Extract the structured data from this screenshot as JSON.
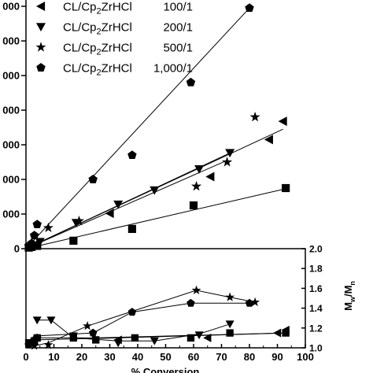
{
  "chart_data": [
    {
      "type": "scatter",
      "panel": "top",
      "xlabel": "% Conversion",
      "ylabel": "",
      "xlim": [
        0,
        100
      ],
      "ylim": [
        0,
        7500
      ],
      "y_tick_labels": [
        {
          "value": 0,
          "label": "0"
        },
        {
          "value": 1000,
          "label": "000"
        },
        {
          "value": 2000,
          "label": "000"
        },
        {
          "value": 3000,
          "label": "000"
        },
        {
          "value": 4000,
          "label": "000"
        },
        {
          "value": 5000,
          "label": "000"
        },
        {
          "value": 6000,
          "label": "000"
        },
        {
          "value": 7000,
          "label": "000"
        }
      ],
      "legend": [
        {
          "prefix": "CL/Cp",
          "sub": "2",
          "suffix": "ZrHCl",
          "ratio": "100/1",
          "marker": "triangle-left"
        },
        {
          "prefix": "CL/Cp",
          "sub": "2",
          "suffix": "ZrHCl",
          "ratio": "200/1",
          "marker": "triangle-down"
        },
        {
          "prefix": "CL/Cp",
          "sub": "2",
          "suffix": "ZrHCl",
          "ratio": "500/1",
          "marker": "star"
        },
        {
          "prefix": "CL/Cp",
          "sub": "2",
          "suffix": "ZrHCl",
          "ratio": "1,000/1",
          "marker": "pentagon"
        }
      ],
      "series": [
        {
          "marker": "square",
          "points": [
            [
              1,
              30
            ],
            [
              2,
              50
            ],
            [
              4,
              80
            ],
            [
              17,
              230
            ],
            [
              38,
              570
            ],
            [
              60,
              1250
            ],
            [
              93,
              1750
            ]
          ],
          "fit": [
            [
              0,
              0
            ],
            [
              94,
              1750
            ]
          ]
        },
        {
          "marker": "triangle-left",
          "points": [
            [
              4,
              150
            ],
            [
              30,
              1020
            ],
            [
              66,
              2080
            ],
            [
              87,
              3150
            ],
            [
              92,
              3680
            ]
          ],
          "fit": [
            [
              0,
              0
            ],
            [
              92,
              3450
            ]
          ]
        },
        {
          "marker": "triangle-down",
          "points": [
            [
              5,
              200
            ],
            [
              18,
              750
            ],
            [
              33,
              1280
            ],
            [
              46,
              1690
            ],
            [
              62,
              2300
            ],
            [
              73,
              2770
            ]
          ],
          "fit": [
            [
              0,
              0
            ],
            [
              74,
              2800
            ]
          ]
        },
        {
          "marker": "star",
          "points": [
            [
              4,
              150
            ],
            [
              8,
              600
            ],
            [
              19,
              800
            ],
            [
              61,
              1800
            ],
            [
              72,
              2500
            ],
            [
              82,
              3800
            ]
          ],
          "fit": [
            [
              0,
              0
            ],
            [
              72,
              2550
            ]
          ]
        },
        {
          "marker": "pentagon",
          "points": [
            [
              1,
              80
            ],
            [
              2,
              150
            ],
            [
              3,
              380
            ],
            [
              4,
              700
            ],
            [
              24,
              2000
            ],
            [
              38,
              2700
            ],
            [
              59,
              4800
            ],
            [
              80,
              6950
            ]
          ],
          "fit": [
            [
              0,
              0
            ],
            [
              80,
              6950
            ]
          ]
        }
      ]
    },
    {
      "type": "scatter",
      "panel": "bottom",
      "xlabel": "% Conversion",
      "ylabel_main": "M",
      "ylabel_sub1": "w",
      "ylabel_mid": "/M",
      "ylabel_sub2": "n",
      "xlim": [
        0,
        100
      ],
      "ylim": [
        1.0,
        2.0
      ],
      "x_ticks": [
        0,
        10,
        20,
        30,
        40,
        50,
        60,
        70,
        80,
        90,
        100
      ],
      "y_ticks": [
        1.0,
        1.2,
        1.4,
        1.6,
        1.8,
        2.0
      ],
      "series": [
        {
          "marker": "square",
          "points": [
            [
              1,
              1.05
            ],
            [
              3,
              1.07
            ],
            [
              4,
              1.1
            ],
            [
              17,
              1.1
            ],
            [
              25,
              1.08
            ],
            [
              39,
              1.1
            ],
            [
              59,
              1.1
            ],
            [
              73,
              1.15
            ],
            [
              93,
              1.15
            ]
          ],
          "line": [
            [
              1,
              1.05
            ],
            [
              4,
              1.1
            ],
            [
              25,
              1.1
            ],
            [
              93,
              1.15
            ]
          ]
        },
        {
          "marker": "triangle-left",
          "points": [
            [
              3,
              1.08
            ],
            [
              33,
              1.08
            ],
            [
              65,
              1.1
            ],
            [
              90,
              1.15
            ],
            [
              93,
              1.18
            ]
          ],
          "line": [
            [
              3,
              1.08
            ],
            [
              33,
              1.1
            ],
            [
              93,
              1.15
            ]
          ]
        },
        {
          "marker": "triangle-down",
          "points": [
            [
              4,
              1.28
            ],
            [
              9,
              1.28
            ],
            [
              17,
              1.12
            ],
            [
              33,
              1.05
            ],
            [
              46,
              1.07
            ],
            [
              62,
              1.13
            ],
            [
              73,
              1.24
            ]
          ],
          "line": [
            [
              4,
              1.28
            ],
            [
              9,
              1.28
            ],
            [
              17,
              1.1
            ],
            [
              33,
              1.07
            ],
            [
              46,
              1.07
            ],
            [
              62,
              1.14
            ],
            [
              73,
              1.24
            ]
          ]
        },
        {
          "marker": "star",
          "points": [
            [
              3,
              1.02
            ],
            [
              8,
              1.03
            ],
            [
              22,
              1.22
            ],
            [
              61,
              1.58
            ],
            [
              73,
              1.51
            ],
            [
              82,
              1.46
            ]
          ],
          "line": [
            [
              3,
              1.02
            ],
            [
              8,
              1.05
            ],
            [
              22,
              1.22
            ],
            [
              61,
              1.58
            ],
            [
              73,
              1.51
            ],
            [
              82,
              1.46
            ]
          ]
        },
        {
          "marker": "pentagon",
          "points": [
            [
              1,
              1.03
            ],
            [
              2,
              1.05
            ],
            [
              3,
              1.08
            ],
            [
              4,
              1.1
            ],
            [
              24,
              1.15
            ],
            [
              38,
              1.36
            ],
            [
              59,
              1.45
            ],
            [
              80,
              1.45
            ]
          ],
          "line": [
            [
              1,
              1.03
            ],
            [
              4,
              1.12
            ],
            [
              24,
              1.15
            ],
            [
              38,
              1.36
            ],
            [
              59,
              1.45
            ],
            [
              80,
              1.45
            ]
          ]
        }
      ]
    }
  ],
  "colors": {
    "ink": "#000000",
    "background": "#ffffff"
  }
}
